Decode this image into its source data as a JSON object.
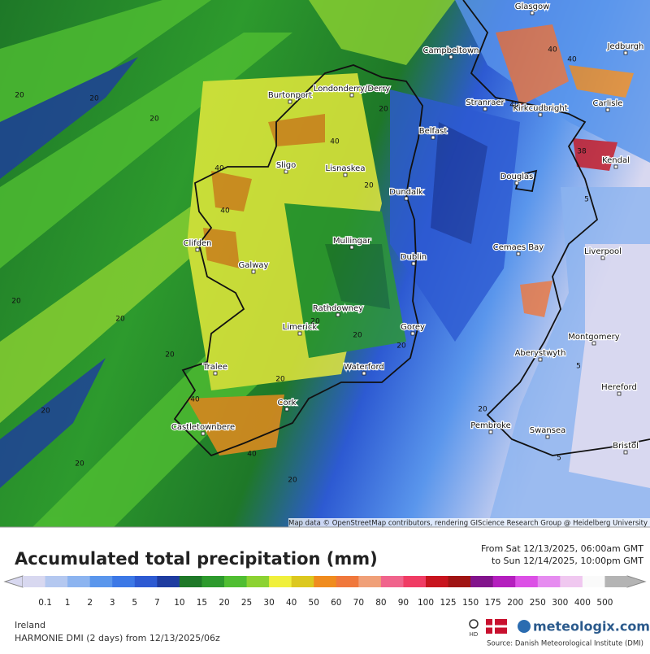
{
  "map": {
    "attribution": "Map data © OpenStreetMap contributors, rendering GIScience Research Group @ Heidelberg University",
    "places": [
      "Glasgow",
      "Jedburgh",
      "Campbeltown",
      "Londonderry/Derry",
      "Burtonport",
      "Stranraer",
      "Kirkcudbright",
      "Carlisle",
      "Belfast",
      "Kendal",
      "Sligo",
      "Lisnaskea",
      "Douglas",
      "Dundalk",
      "Clifden",
      "Mullingar",
      "Galway",
      "Cemaes Bay",
      "Liverpool",
      "Dublin",
      "Rathdowney",
      "Limerick",
      "Gorey",
      "Montgomery",
      "Aberystwyth",
      "Tralee",
      "Waterford",
      "Hereford",
      "Cork",
      "Castletownbere",
      "Pembroke",
      "Swansea",
      "Bristol"
    ],
    "contour_labels": [
      20,
      20,
      20,
      20,
      20,
      20,
      20,
      20,
      20,
      20,
      20,
      20,
      20,
      20,
      20,
      20,
      40,
      40,
      40,
      40,
      40,
      40,
      40,
      40,
      5,
      5,
      5,
      38
    ]
  },
  "footer": {
    "title": "Accumulated total precipitation (mm)",
    "from": "From Sat 12/13/2025, 06:00am GMT",
    "to": "to Sun 12/14/2025, 10:00pm GMT",
    "legend": {
      "values": [
        0.1,
        1,
        2,
        3,
        5,
        7,
        10,
        15,
        20,
        25,
        30,
        40,
        50,
        60,
        70,
        80,
        90,
        100,
        125,
        150,
        175,
        200,
        250,
        300,
        400,
        500
      ],
      "colors": [
        "#d8d8f0",
        "#b4c8f0",
        "#8cb4f0",
        "#5a96ec",
        "#3c78e6",
        "#2d5ad2",
        "#1e3ca0",
        "#1e7828",
        "#2d9a2d",
        "#50be32",
        "#8cd232",
        "#f0f03c",
        "#dcc81e",
        "#f08c1e",
        "#f0783c",
        "#f0a078",
        "#f0648c",
        "#f03c64",
        "#c8141e",
        "#a01414",
        "#82148c",
        "#b41ebe",
        "#dc50e6",
        "#e68cf0",
        "#f0c8f0",
        "#fafafa",
        "#b4b4b4"
      ]
    },
    "region": "Ireland",
    "model": "HARMONIE DMI (2 days)  from  12/13/2025/06z",
    "hd": "HD",
    "brand": "meteologix.com",
    "source": "Source: Danish Meteorological Institute (DMI)"
  }
}
